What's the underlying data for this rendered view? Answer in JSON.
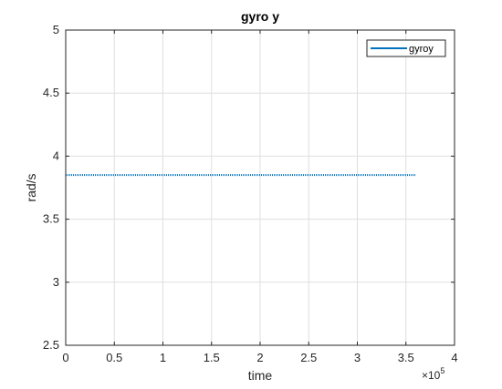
{
  "chart_data": {
    "type": "line",
    "title": "gyro y",
    "xlabel": "time",
    "ylabel": "rad/s",
    "xlim": [
      0,
      400000
    ],
    "ylim": [
      2.5,
      5
    ],
    "x_ticks": [
      0,
      0.5,
      1,
      1.5,
      2,
      2.5,
      3,
      3.5,
      4
    ],
    "x_tick_labels": [
      "0",
      "0.5",
      "1",
      "1.5",
      "2",
      "2.5",
      "3",
      "3.5",
      "4"
    ],
    "x_exponent_base": "×10",
    "x_exponent_power": "5",
    "y_ticks": [
      2.5,
      3,
      3.5,
      4,
      4.5,
      5
    ],
    "y_tick_labels": [
      "2.5",
      "3",
      "3.5",
      "4",
      "4.5",
      "5"
    ],
    "grid": true,
    "legend_position": "top-right",
    "series": [
      {
        "name": "gyroy",
        "color": "#0072bd",
        "x": [
          0,
          360000
        ],
        "y": [
          3.85,
          3.85
        ]
      }
    ]
  }
}
